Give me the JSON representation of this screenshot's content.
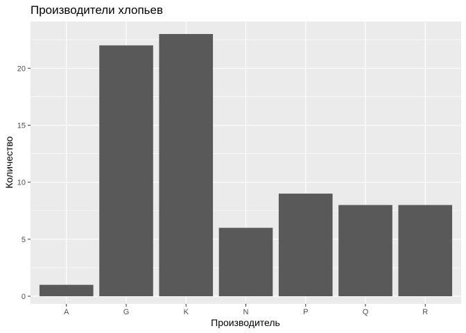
{
  "chart_data": {
    "type": "bar",
    "title": "Производители хлопьев",
    "xlabel": "Производитель",
    "ylabel": "Количество",
    "categories": [
      "A",
      "G",
      "K",
      "N",
      "P",
      "Q",
      "R"
    ],
    "values": [
      1,
      22,
      23,
      6,
      9,
      8,
      8
    ],
    "ylim": [
      0,
      24.2
    ],
    "yticks": [
      0,
      5,
      10,
      15,
      20
    ],
    "grid": true,
    "colors": {
      "bar": "#595959",
      "panel": "#ebebeb",
      "grid_major": "#ffffff",
      "tick_text": "#4d4d4d",
      "tick_mark": "#333333"
    }
  }
}
